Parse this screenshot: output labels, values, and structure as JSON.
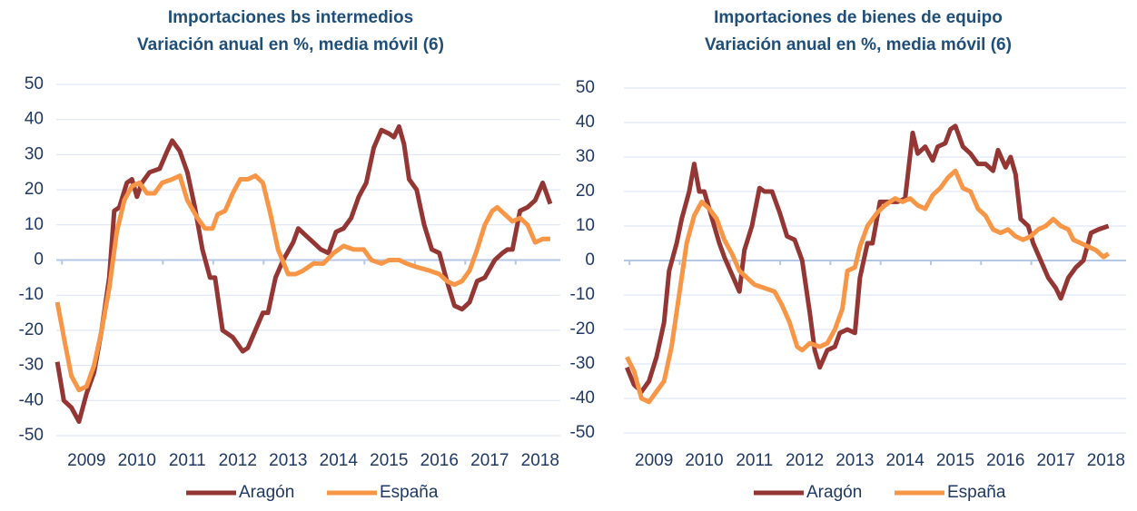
{
  "chart_data": [
    {
      "type": "line",
      "title": "Importaciones  bs intermedios",
      "subtitle": "Variación anual en %, media móvil (6)",
      "xlim": [
        2008.4,
        2018.4
      ],
      "xticks": [
        2009,
        2010,
        2011,
        2012,
        2013,
        2014,
        2015,
        2016,
        2017,
        2018
      ],
      "ylim": [
        -50,
        50
      ],
      "yticks": [
        -50,
        -40,
        -30,
        -20,
        -10,
        0,
        10,
        20,
        30,
        40,
        50
      ],
      "grid": true,
      "legend": "bottom",
      "series": [
        {
          "name": "Aragón",
          "color": "#943634",
          "x": [
            2008.42,
            2008.55,
            2008.7,
            2008.85,
            2009.0,
            2009.15,
            2009.3,
            2009.45,
            2009.55,
            2009.65,
            2009.8,
            2009.9,
            2010.0,
            2010.1,
            2010.25,
            2010.45,
            2010.6,
            2010.7,
            2010.85,
            2011.0,
            2011.15,
            2011.3,
            2011.45,
            2011.55,
            2011.7,
            2011.9,
            2012.1,
            2012.2,
            2012.35,
            2012.5,
            2012.6,
            2012.75,
            2012.9,
            2013.1,
            2013.2,
            2013.35,
            2013.5,
            2013.65,
            2013.8,
            2013.95,
            2014.1,
            2014.25,
            2014.4,
            2014.55,
            2014.7,
            2014.85,
            2015.0,
            2015.1,
            2015.2,
            2015.3,
            2015.4,
            2015.55,
            2015.7,
            2015.85,
            2016.0,
            2016.15,
            2016.3,
            2016.45,
            2016.6,
            2016.75,
            2016.9,
            2017.1,
            2017.25,
            2017.35,
            2017.45,
            2017.6,
            2017.75,
            2017.9,
            2018.05,
            2018.2
          ],
          "values": [
            -29,
            -40,
            -42,
            -46,
            -38,
            -32,
            -20,
            -5,
            14,
            15,
            22,
            23,
            18,
            22,
            25,
            26,
            31,
            34,
            31,
            25,
            15,
            3,
            -5,
            -5,
            -20,
            -22,
            -26,
            -25,
            -20,
            -15,
            -15,
            -5,
            0,
            5,
            9,
            7,
            5,
            3,
            2,
            8,
            9,
            12,
            18,
            22,
            32,
            37,
            36,
            35,
            38,
            33,
            23,
            20,
            10,
            3,
            2,
            -6,
            -13,
            -14,
            -12,
            -6,
            -5,
            0,
            2,
            3,
            3,
            14,
            15,
            17,
            22,
            16
          ]
        },
        {
          "name": "España",
          "color": "#F79646",
          "x": [
            2008.42,
            2008.55,
            2008.7,
            2008.85,
            2009.0,
            2009.15,
            2009.3,
            2009.45,
            2009.6,
            2009.75,
            2009.9,
            2010.05,
            2010.2,
            2010.35,
            2010.5,
            2010.7,
            2010.85,
            2011.0,
            2011.2,
            2011.35,
            2011.5,
            2011.6,
            2011.75,
            2011.9,
            2012.05,
            2012.2,
            2012.35,
            2012.5,
            2012.65,
            2012.8,
            2013.0,
            2013.15,
            2013.3,
            2013.5,
            2013.7,
            2013.9,
            2014.1,
            2014.3,
            2014.5,
            2014.65,
            2014.85,
            2015.0,
            2015.2,
            2015.35,
            2015.55,
            2015.8,
            2016.0,
            2016.15,
            2016.3,
            2016.45,
            2016.6,
            2016.75,
            2016.9,
            2017.05,
            2017.15,
            2017.3,
            2017.45,
            2017.6,
            2017.75,
            2017.9,
            2018.05,
            2018.2
          ],
          "values": [
            -12,
            -22,
            -33,
            -37,
            -36,
            -30,
            -20,
            -8,
            8,
            17,
            21,
            22,
            19,
            19,
            22,
            23,
            24,
            17,
            12,
            9,
            9,
            13,
            14,
            19,
            23,
            23,
            24,
            22,
            13,
            3,
            -4,
            -4,
            -3,
            -1,
            -1,
            2,
            4,
            3,
            3,
            0,
            -1,
            0,
            0,
            -1,
            -2,
            -3,
            -4,
            -6,
            -7,
            -6,
            -3,
            3,
            10,
            14,
            15,
            13,
            11,
            12,
            10,
            5,
            6,
            6
          ]
        }
      ]
    },
    {
      "type": "line",
      "title": "Importaciones  de bienes de equipo",
      "subtitle": "Variación anual en %, media móvil (6)",
      "xlim": [
        2008.4,
        2018.4
      ],
      "xticks": [
        2009,
        2010,
        2011,
        2012,
        2013,
        2014,
        2015,
        2016,
        2017,
        2018
      ],
      "ylim": [
        -50,
        50
      ],
      "yticks": [
        -50,
        -40,
        -30,
        -20,
        -10,
        0,
        10,
        20,
        30,
        40,
        50
      ],
      "grid": true,
      "legend": "bottom",
      "series": [
        {
          "name": "Aragón",
          "color": "#943634",
          "x": [
            2008.46,
            2008.6,
            2008.75,
            2008.9,
            2009.05,
            2009.2,
            2009.3,
            2009.45,
            2009.55,
            2009.7,
            2009.8,
            2009.9,
            2010.0,
            2010.1,
            2010.2,
            2010.3,
            2010.4,
            2010.55,
            2010.7,
            2010.8,
            2010.95,
            2011.1,
            2011.2,
            2011.35,
            2011.5,
            2011.65,
            2011.8,
            2011.95,
            2012.1,
            2012.2,
            2012.3,
            2012.45,
            2012.6,
            2012.7,
            2012.85,
            2013.0,
            2013.1,
            2013.25,
            2013.35,
            2013.5,
            2013.7,
            2013.85,
            2014.0,
            2014.15,
            2014.25,
            2014.4,
            2014.55,
            2014.65,
            2014.8,
            2014.9,
            2015.0,
            2015.15,
            2015.3,
            2015.45,
            2015.6,
            2015.75,
            2015.85,
            2016.0,
            2016.1,
            2016.2,
            2016.3,
            2016.45,
            2016.55,
            2016.7,
            2016.85,
            2017.0,
            2017.1,
            2017.25,
            2017.4,
            2017.55,
            2017.7,
            2017.85,
            2018.05
          ],
          "values": [
            -31,
            -36,
            -38,
            -35,
            -28,
            -18,
            -3,
            5,
            12,
            20,
            28,
            20,
            20,
            15,
            10,
            5,
            1,
            -4,
            -9,
            3,
            10,
            21,
            20,
            20,
            14,
            7,
            6,
            0,
            -15,
            -26,
            -31,
            -26,
            -25,
            -21,
            -20,
            -21,
            -5,
            5,
            5,
            17,
            17,
            17,
            18,
            37,
            31,
            33,
            29,
            33,
            34,
            38,
            39,
            33,
            31,
            28,
            28,
            26,
            32,
            27,
            30,
            25,
            12,
            10,
            5,
            0,
            -5,
            -8,
            -11,
            -5,
            -2,
            0,
            8,
            9,
            10
          ]
        },
        {
          "name": "España",
          "color": "#F79646",
          "x": [
            2008.46,
            2008.6,
            2008.75,
            2008.9,
            2009.05,
            2009.2,
            2009.35,
            2009.5,
            2009.65,
            2009.8,
            2009.95,
            2010.1,
            2010.25,
            2010.4,
            2010.55,
            2010.7,
            2010.85,
            2011.0,
            2011.2,
            2011.4,
            2011.55,
            2011.7,
            2011.85,
            2011.95,
            2012.1,
            2012.3,
            2012.45,
            2012.6,
            2012.75,
            2012.85,
            2013.0,
            2013.1,
            2013.25,
            2013.45,
            2013.6,
            2013.8,
            2013.95,
            2014.1,
            2014.25,
            2014.4,
            2014.55,
            2014.7,
            2014.85,
            2015.0,
            2015.15,
            2015.3,
            2015.45,
            2015.6,
            2015.75,
            2015.9,
            2016.05,
            2016.2,
            2016.35,
            2016.5,
            2016.65,
            2016.8,
            2016.95,
            2017.1,
            2017.25,
            2017.35,
            2017.5,
            2017.65,
            2017.8,
            2017.95,
            2018.05
          ],
          "values": [
            -28,
            -32,
            -40,
            -41,
            -38,
            -35,
            -25,
            -10,
            5,
            13,
            17,
            15,
            12,
            6,
            2,
            -3,
            -5,
            -7,
            -8,
            -9,
            -13,
            -18,
            -25,
            -26,
            -24,
            -25,
            -24,
            -20,
            -14,
            -3,
            -2,
            4,
            10,
            14,
            16,
            18,
            17,
            18,
            16,
            15,
            19,
            21,
            24,
            26,
            21,
            20,
            15,
            13,
            9,
            8,
            9,
            7,
            6,
            7,
            9,
            10,
            12,
            10,
            9,
            6,
            5,
            4,
            3,
            1,
            2
          ]
        }
      ]
    }
  ]
}
